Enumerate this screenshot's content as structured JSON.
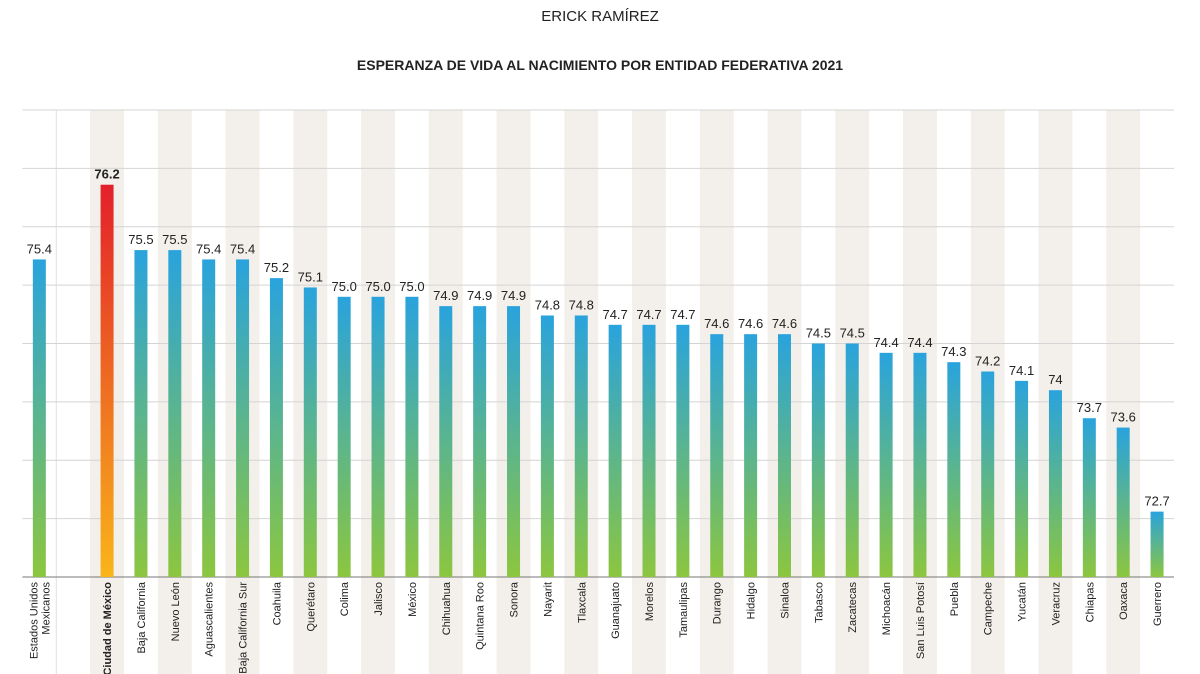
{
  "chart_data": {
    "type": "bar",
    "author": "ERICK RAMÍREZ",
    "title": "ESPERANZA DE VIDA AL NACIMIENTO POR ENTIDAD FEDERATIVA 2021",
    "categories": [
      "Estados Unidos\nMexicanos",
      null,
      "Ciudad de México",
      "Baja California",
      "Nuevo León",
      "Aguascalientes",
      "Baja California Sur",
      "Coahuila",
      "Querétaro",
      "Colima",
      "Jalisco",
      "México",
      "Chihuahua",
      "Quintana Roo",
      "Sonora",
      "Nayarit",
      "Tlaxcala",
      "Guanajuato",
      "Morelos",
      "Tamaulipas",
      "Durango",
      "Hidalgo",
      "Sinaloa",
      "Tabasco",
      "Zacatecas",
      "Michoacán",
      "San Luis Potosí",
      "Puebla",
      "Campeche",
      "Yucatán",
      "Veracruz",
      "Chiapas",
      "Oaxaca",
      "Guerrero"
    ],
    "values": [
      75.4,
      null,
      76.2,
      75.5,
      75.5,
      75.4,
      75.4,
      75.2,
      75.1,
      75,
      75,
      75,
      74.9,
      74.9,
      74.9,
      74.8,
      74.8,
      74.7,
      74.7,
      74.7,
      74.6,
      74.6,
      74.6,
      74.5,
      74.5,
      74.4,
      74.4,
      74.3,
      74.2,
      74.1,
      74,
      73.7,
      73.6,
      72.7
    ],
    "value_labels": [
      "75.4",
      null,
      "76.2",
      "75.5",
      "75.5",
      "75.4",
      "75.4",
      "75.2",
      "75.1",
      "75.0",
      "75.0",
      "75.0",
      "74.9",
      "74.9",
      "74.9",
      "74.8",
      "74.8",
      "74.7",
      "74.7",
      "74.7",
      "74.6",
      "74.6",
      "74.6",
      "74.5",
      "74.5",
      "74.4",
      "74.4",
      "74.3",
      "74.2",
      "74.1",
      "74",
      "73.7",
      "73.6",
      "72.7"
    ],
    "ylim": [
      72,
      77
    ],
    "grid": true,
    "colors": [
      "#29a3dd",
      "#8cc63f"
    ],
    "highlight": "Ciudad de México",
    "highlight_colors": [
      "#e3202a",
      "#f9b51a"
    ]
  }
}
